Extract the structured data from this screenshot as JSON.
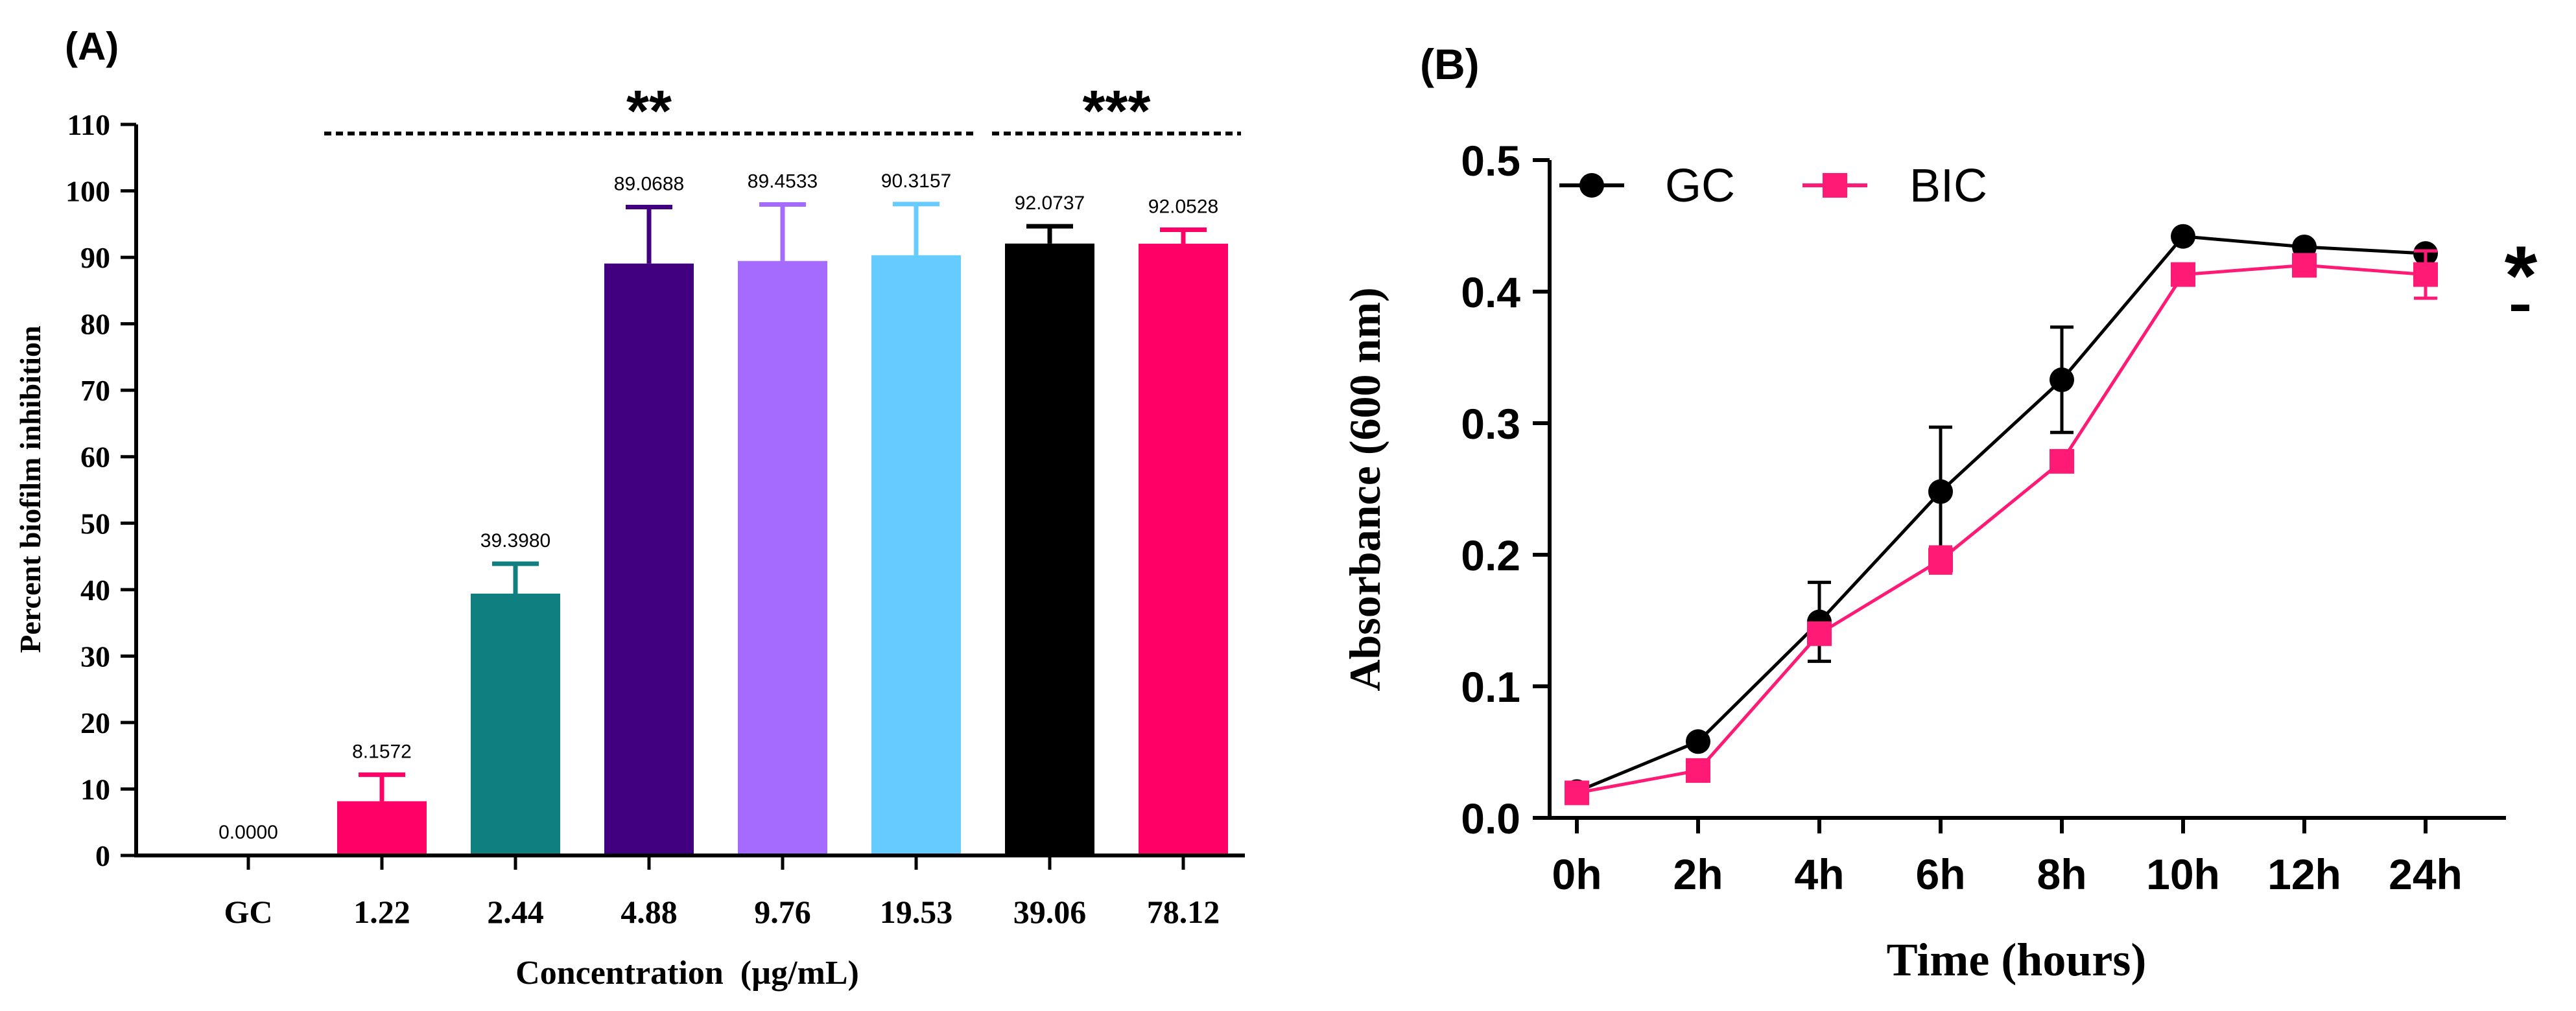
{
  "panel_a": {
    "panel_label": "(A)",
    "chart_data": {
      "type": "bar",
      "categories": [
        "GC",
        "1.22",
        "2.44",
        "4.88",
        "9.76",
        "19.53",
        "39.06",
        "78.12"
      ],
      "values": [
        0.0,
        8.1572,
        39.398,
        89.0688,
        89.4533,
        90.3157,
        92.0737,
        92.0528
      ],
      "errors": [
        0,
        4.0,
        4.5,
        8.5,
        8.5,
        7.7,
        2.6,
        2.1
      ],
      "value_labels": [
        "0.0000",
        "8.1572",
        "39.3980",
        "89.0688",
        "89.4533",
        "90.3157",
        "92.0737",
        "92.0528"
      ],
      "colors": [
        "#000000",
        "#FF0066",
        "#107F7F",
        "#400080",
        "#A56BFF",
        "#66CCFF",
        "#000000",
        "#FF0066"
      ],
      "title": "",
      "xlabel": "Concentration  (µg/mL)",
      "ylabel": "Percent biofilm inhibition",
      "ylim": [
        0,
        110
      ],
      "yticks": [
        0,
        10,
        20,
        30,
        40,
        50,
        60,
        70,
        80,
        90,
        100,
        110
      ],
      "significance": [
        {
          "from_category": "1.22",
          "to_category": "19.53",
          "label": "**"
        },
        {
          "from_category": "39.06",
          "to_category": "78.12",
          "label": "***"
        }
      ]
    }
  },
  "panel_b": {
    "panel_label": "(B)",
    "chart_data": {
      "type": "line",
      "x": [
        "0h",
        "2h",
        "4h",
        "6h",
        "8h",
        "10h",
        "12h",
        "24h"
      ],
      "series": [
        {
          "name": "GC",
          "color": "#000000",
          "marker": "circle",
          "values": [
            0.02,
            0.058,
            0.149,
            0.248,
            0.333,
            0.442,
            0.434,
            0.429
          ],
          "errors": [
            0.0,
            0.0,
            0.03,
            0.049,
            0.04,
            0.0,
            0.0,
            0.0
          ]
        },
        {
          "name": "BIC",
          "color": "#FF1A75",
          "marker": "square",
          "values": [
            0.019,
            0.036,
            0.14,
            0.196,
            0.271,
            0.413,
            0.42,
            0.413
          ],
          "errors": [
            0.0,
            0.0,
            0.0,
            0.01,
            0.0,
            0.0,
            0.0,
            0.018
          ]
        }
      ],
      "title": "",
      "xlabel": "Time (hours)",
      "ylabel": "Absorbance (600 nm)",
      "ylim": [
        0,
        0.5
      ],
      "yticks": [
        "0.0",
        "0.1",
        "0.2",
        "0.3",
        "0.4",
        "0.5"
      ],
      "legend_position": "top-left",
      "significance_label": "*"
    }
  }
}
